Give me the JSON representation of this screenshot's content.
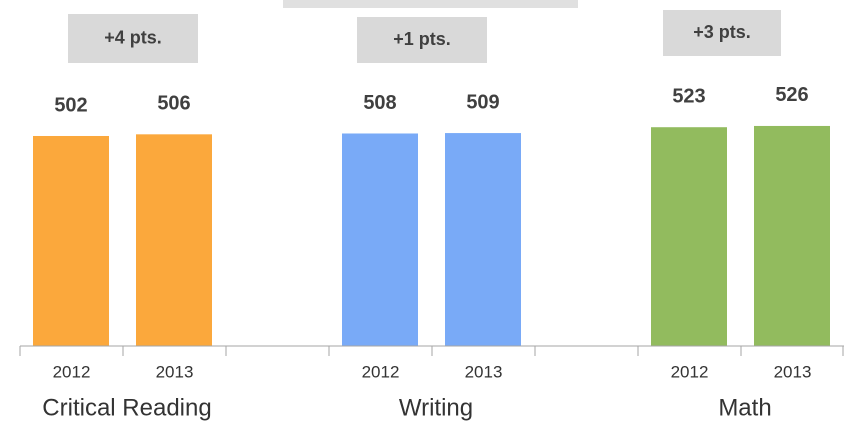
{
  "chart_data": {
    "type": "bar",
    "categories": [
      "Critical Reading",
      "Writing",
      "Math"
    ],
    "colors": [
      "#fba83c",
      "#79aaf7",
      "#92bb5e"
    ],
    "series": [
      {
        "name": "2012",
        "values": [
          502,
          508,
          523
        ]
      },
      {
        "name": "2013",
        "values": [
          506,
          509,
          526
        ]
      }
    ],
    "annotations": [
      "+4 pts.",
      "+1 pts.",
      "+3 pts."
    ],
    "ylim": [
      0,
      600
    ]
  }
}
